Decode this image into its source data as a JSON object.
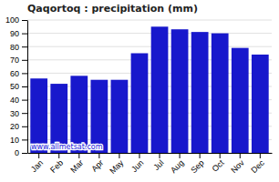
{
  "chart_data": {
    "type": "bar",
    "title": "Qaqortoq : precipitation (mm)",
    "categories": [
      "Jan",
      "Feb",
      "Mar",
      "Apr",
      "May",
      "Jun",
      "Jul",
      "Aug",
      "Sep",
      "Oct",
      "Nov",
      "Dec"
    ],
    "values": [
      56,
      52,
      58,
      55,
      55,
      75,
      95,
      93,
      91,
      90,
      79,
      74
    ],
    "color": "#1818cc",
    "ylim": [
      0,
      100
    ],
    "yticks": [
      0,
      10,
      20,
      30,
      40,
      50,
      60,
      70,
      80,
      90,
      100
    ],
    "grid": true,
    "annotations": [
      "www.allmetsat.com"
    ]
  }
}
